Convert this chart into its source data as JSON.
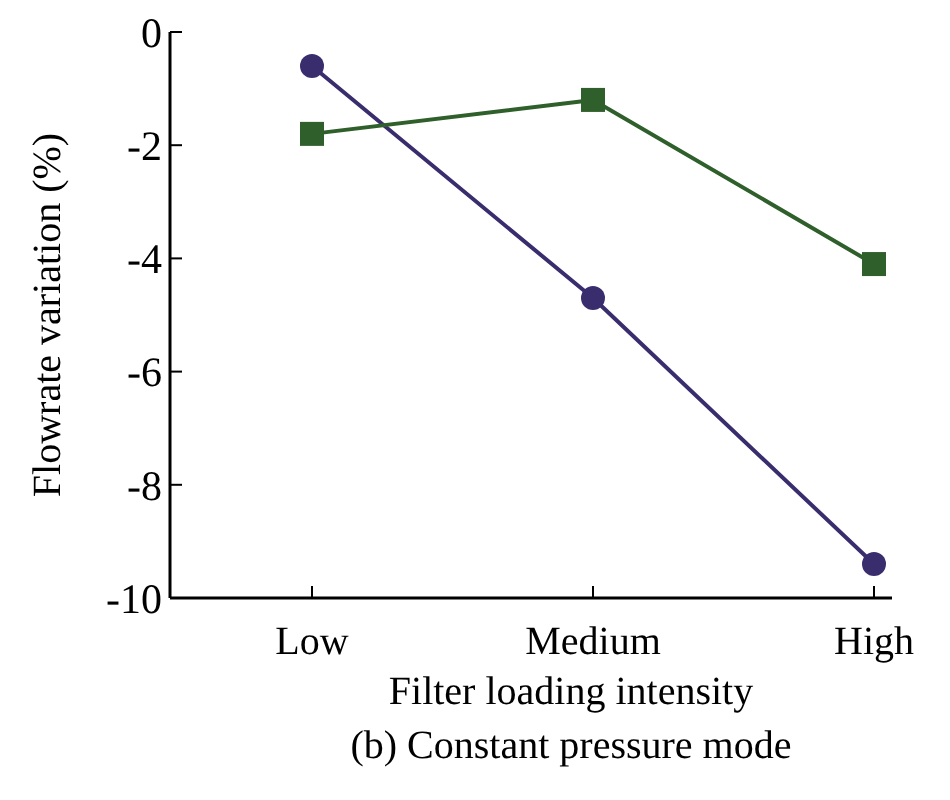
{
  "chart_data": {
    "type": "line",
    "xlabel": "Filter loading intensity",
    "ylabel": "Flowrate variation (%)",
    "annotations": [
      "(b) Constant pressure mode"
    ],
    "categories": [
      "Low",
      "Medium",
      "High"
    ],
    "series": [
      {
        "color": "#3a2d6e",
        "marker": "circle",
        "values": [
          -0.6,
          -4.7,
          -9.4
        ]
      },
      {
        "color": "#2f5f2a",
        "marker": "square",
        "values": [
          -1.8,
          -1.2,
          -4.1
        ]
      }
    ],
    "ylim": [
      -10,
      0
    ],
    "yticks": [
      0,
      -2,
      -4,
      -6,
      -8,
      -10
    ],
    "grid": false
  }
}
